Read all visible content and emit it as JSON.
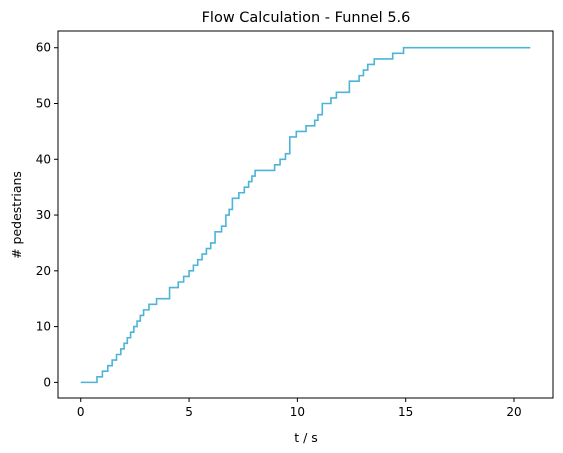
{
  "chart_data": {
    "type": "line",
    "title": "Flow Calculation - Funnel  5.6",
    "xlabel": "t / s",
    "ylabel": "# pedestrians",
    "xlim": [
      -1.05,
      21.8
    ],
    "ylim": [
      -2.8,
      63.0
    ],
    "xticks": [
      0,
      5,
      10,
      15,
      20
    ],
    "yticks": [
      0,
      10,
      20,
      30,
      40,
      50,
      60
    ],
    "grid": false,
    "line_color": "#4db4d7",
    "series": [
      {
        "style": "step",
        "x": [
          0.0,
          0.75,
          1.0,
          1.25,
          1.45,
          1.65,
          1.85,
          2.0,
          2.15,
          2.3,
          2.45,
          2.6,
          2.75,
          2.9,
          3.0,
          3.15,
          3.35,
          3.5,
          3.65,
          3.85,
          4.1,
          4.5,
          4.75,
          5.0,
          5.2,
          5.4,
          5.6,
          5.8,
          6.0,
          6.2,
          6.5,
          6.7,
          6.85,
          7.0,
          7.3,
          7.55,
          7.75,
          7.9,
          8.05,
          8.95,
          9.2,
          9.45,
          9.65,
          9.95,
          10.4,
          10.8,
          10.95,
          11.15,
          11.55,
          11.8,
          12.05,
          12.4,
          12.85,
          13.05,
          13.25,
          13.55,
          14.0,
          14.4,
          14.9,
          15.25,
          15.65,
          15.95,
          16.2,
          16.4,
          16.7,
          17.05,
          17.45,
          18.55,
          18.95,
          20.75
        ],
        "y": [
          0,
          1,
          2,
          3,
          4,
          5,
          6,
          7,
          8,
          9,
          10,
          11,
          12,
          13,
          13,
          14,
          14,
          15,
          15,
          15,
          17,
          18,
          19,
          20,
          21,
          22,
          23,
          24,
          25,
          27,
          28,
          30,
          31,
          33,
          34,
          35,
          36,
          37,
          38,
          39,
          40,
          41,
          44,
          45,
          46,
          47,
          48,
          50,
          51,
          52,
          52,
          54,
          55,
          56,
          57,
          58,
          58,
          59,
          60,
          60,
          60,
          60,
          60,
          60,
          60,
          60,
          60,
          60,
          60,
          60
        ]
      }
    ]
  }
}
